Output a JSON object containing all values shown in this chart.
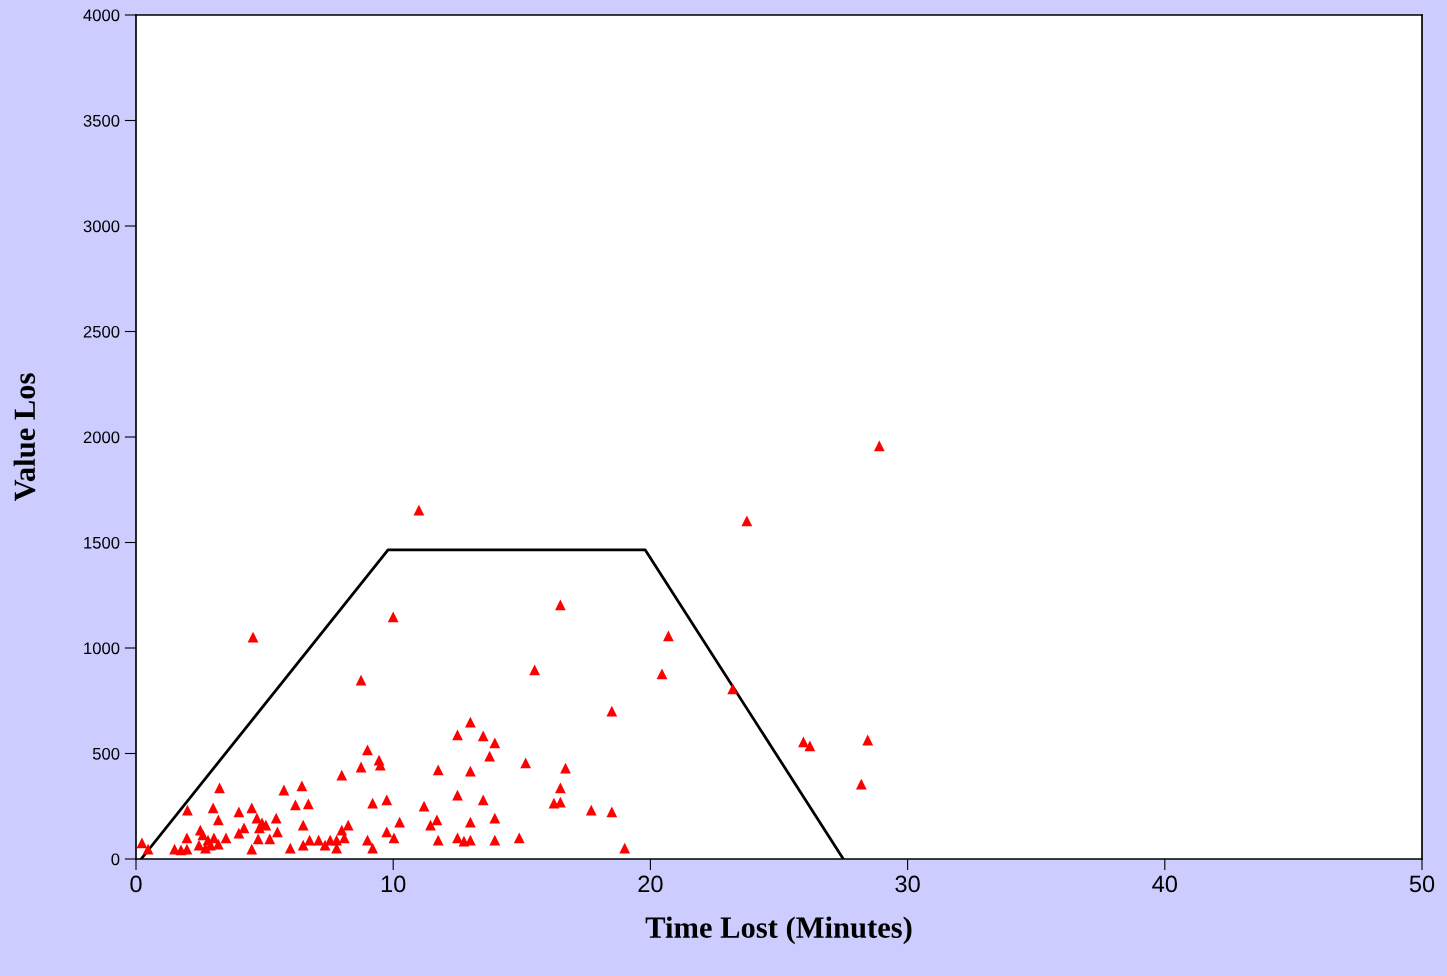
{
  "chart_data": {
    "type": "scatter",
    "xlabel": "Time Lost (Minutes)",
    "ylabel": "Value Los",
    "xlim": [
      0,
      50
    ],
    "xticks": [
      0,
      10,
      20,
      30,
      40,
      50
    ],
    "ylim": [
      0,
      4000
    ],
    "yticks": [
      0,
      500,
      1000,
      1500,
      2000,
      2500,
      3000,
      3500,
      4000
    ],
    "series": [
      {
        "color": "#ff0000",
        "marker": "triangle",
        "x": [
          0.23,
          0.47,
          1.5,
          1.75,
          1.98,
          2.0,
          1.98,
          2.5,
          2.45,
          2.6,
          2.7,
          2.8,
          2.9,
          3.0,
          3.03,
          3.2,
          3.25,
          3.2,
          3.5,
          4.0,
          4.0,
          4.2,
          4.5,
          4.55,
          4.5,
          4.7,
          4.75,
          4.8,
          4.9,
          5.05,
          5.2,
          5.45,
          5.5,
          5.75,
          6.0,
          6.2,
          6.45,
          6.5,
          6.5,
          6.7,
          6.75,
          7.1,
          7.35,
          7.55,
          7.8,
          7.8,
          8.0,
          8.0,
          8.1,
          8.25,
          8.75,
          8.75,
          9.0,
          9.0,
          9.2,
          9.2,
          9.45,
          9.5,
          9.75,
          9.75,
          10.0,
          10.03,
          10.25,
          11.0,
          11.2,
          11.45,
          11.75,
          11.7,
          11.75,
          12.5,
          12.5,
          12.5,
          12.75,
          13.0,
          13.0,
          13.0,
          13.0,
          13.5,
          13.5,
          13.75,
          13.95,
          13.95,
          13.95,
          14.9,
          15.15,
          15.5,
          16.25,
          16.5,
          16.5,
          16.5,
          16.7,
          17.7,
          18.5,
          18.5,
          19.0,
          20.45,
          20.7,
          23.2,
          23.75,
          25.95,
          26.2,
          28.2,
          28.45,
          28.9
        ],
        "values": [
          76,
          47,
          47,
          43,
          100,
          232,
          47,
          137,
          66,
          114,
          52,
          90,
          66,
          242,
          100,
          185,
          337,
          71,
          100,
          223,
          123,
          147,
          242,
          1052,
          47,
          194,
          95,
          147,
          171,
          161,
          95,
          194,
          128,
          327,
          52,
          256,
          346,
          161,
          66,
          261,
          90,
          90,
          66,
          90,
          52,
          90,
          398,
          137,
          100,
          161,
          848,
          436,
          517,
          90,
          52,
          265,
          469,
          445,
          280,
          128,
          1147,
          100,
          175,
          1654,
          251,
          161,
          422,
          185,
          90,
          588,
          303,
          100,
          85,
          649,
          417,
          175,
          90,
          583,
          280,
          488,
          550,
          194,
          90,
          100,
          455,
          896,
          265,
          1204,
          337,
          270,
          431,
          232,
          223,
          701,
          52,
          877,
          1057,
          806,
          1602,
          555,
          536,
          355,
          564,
          1958
        ]
      },
      {
        "type": "line",
        "color": "#000000",
        "marker": "none",
        "line_style": "solid",
        "x": [
          0.2,
          9.8,
          19.8,
          27.5
        ],
        "values": [
          0,
          1465,
          1465,
          0
        ]
      }
    ]
  }
}
